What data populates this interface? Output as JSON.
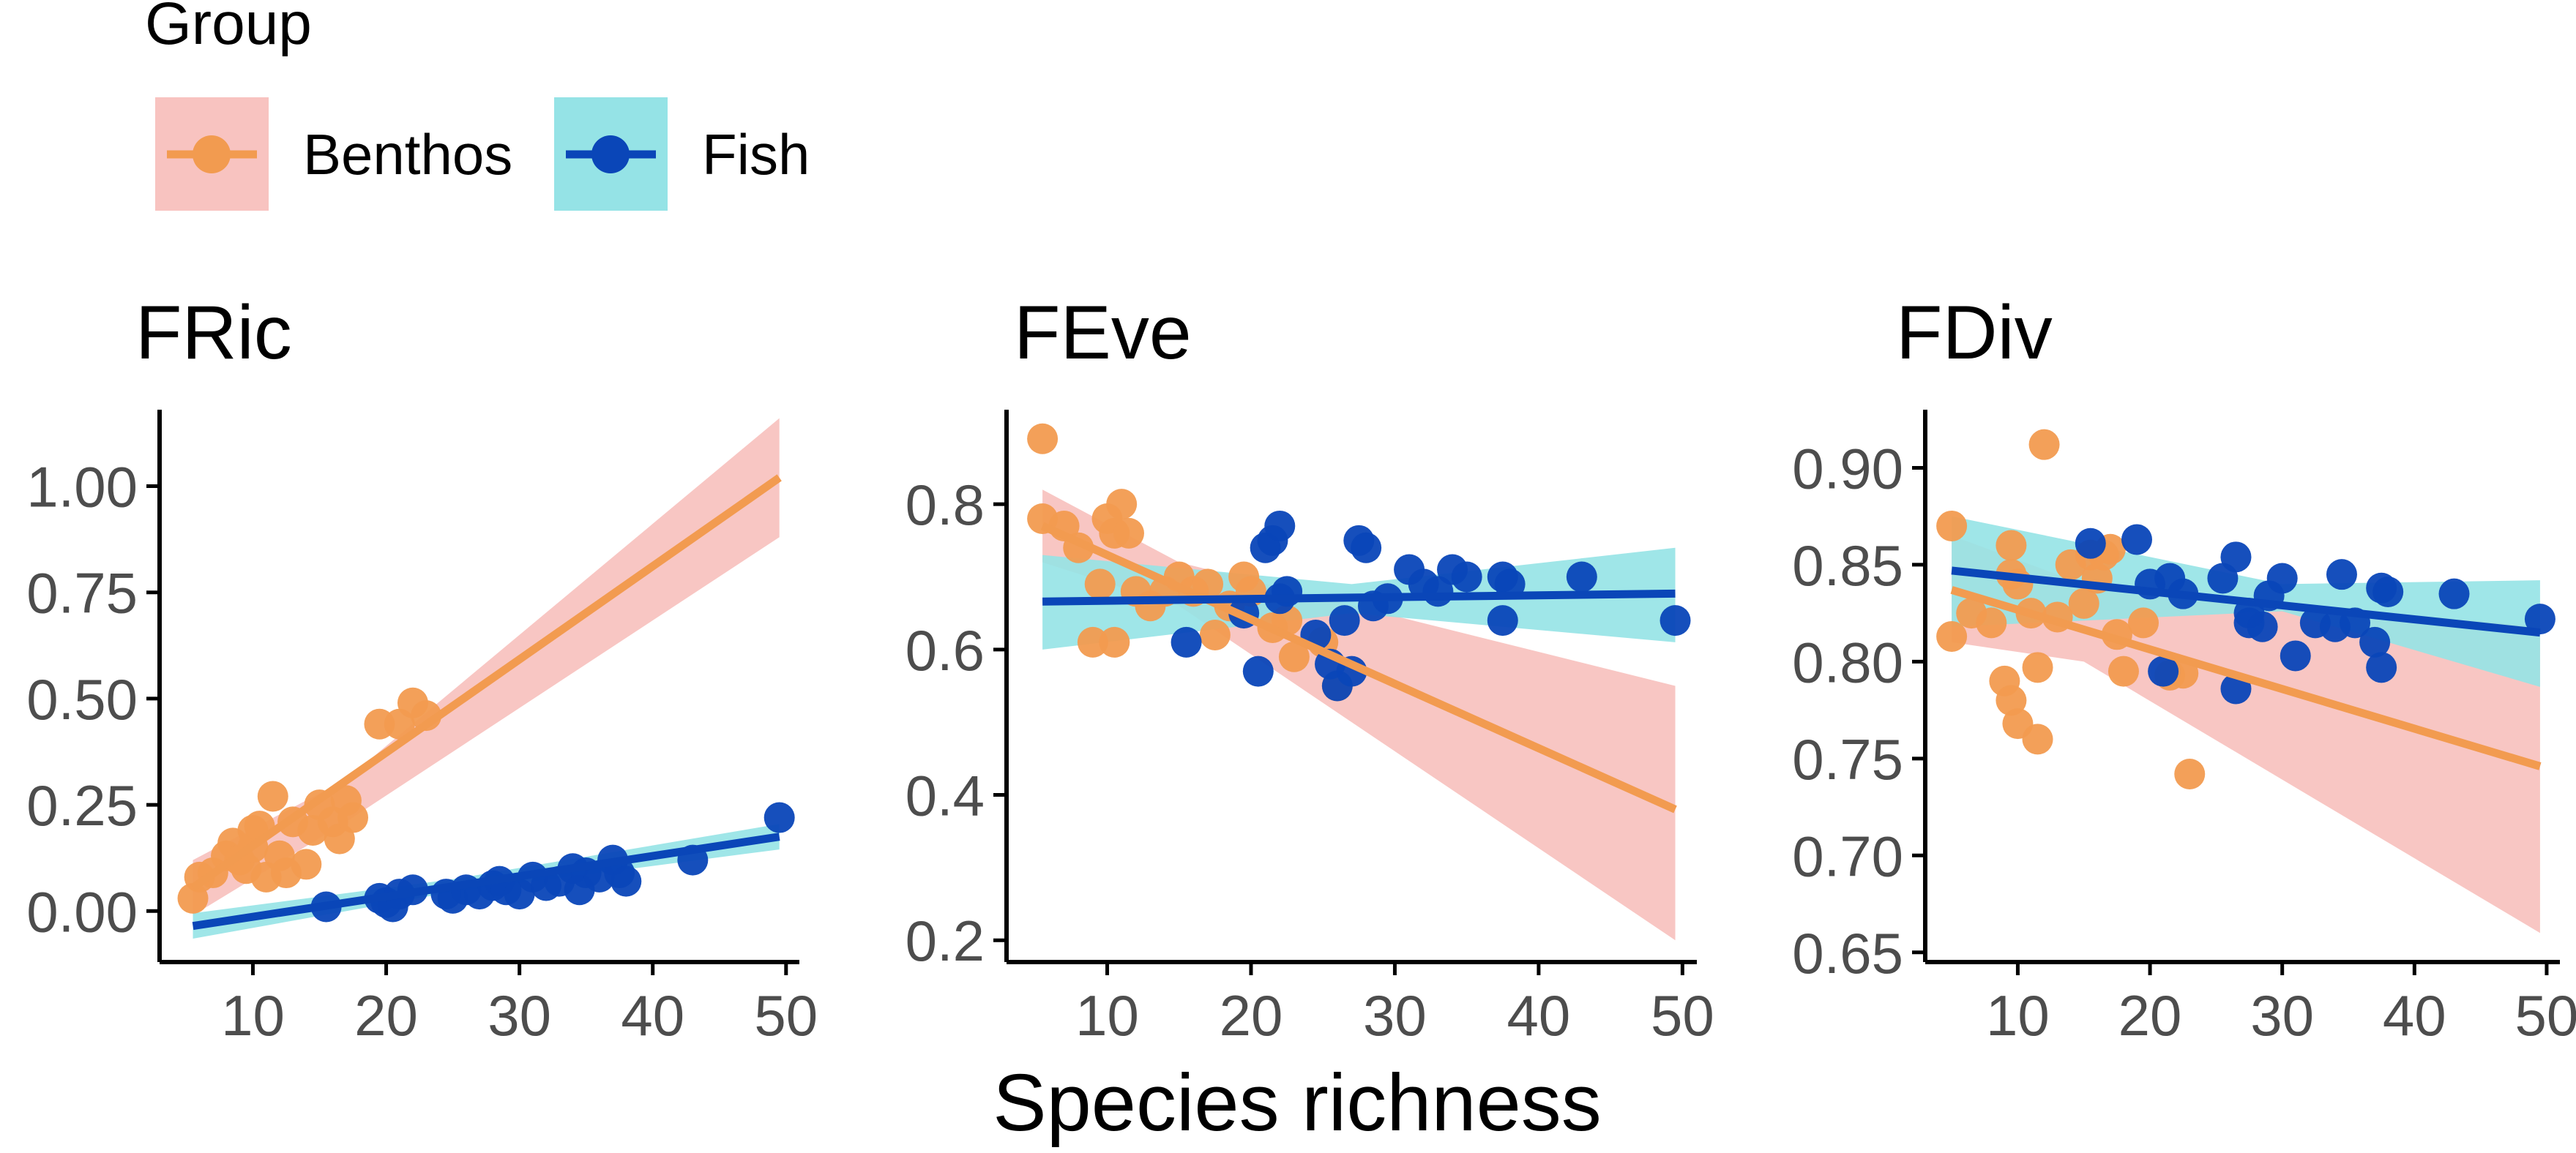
{
  "legend": {
    "title": "Group",
    "entries": [
      {
        "label": "Benthos",
        "line_color": "#F29B50",
        "band_color": "#F8C3C0"
      },
      {
        "label": "Fish",
        "line_color": "#0A46B8",
        "band_color": "#95E3E6"
      }
    ],
    "placement": "top-left"
  },
  "xlabel": "Species richness",
  "colors": {
    "benthos_point": "#F29B50",
    "benthos_line": "#F29B50",
    "benthos_band": "#F8C3C0",
    "fish_point": "#0A46B8",
    "fish_line": "#0A46B8",
    "fish_band": "#95E3E6",
    "axis": "#000000",
    "tick_text": "#4D4D4D"
  },
  "chart_data": [
    {
      "type": "scatter",
      "title": "FRic",
      "xlim": [
        3,
        51
      ],
      "ylim": [
        -0.12,
        1.18
      ],
      "xticks": [
        10,
        20,
        30,
        40,
        50
      ],
      "yticks": [
        0.0,
        0.25,
        0.5,
        0.75,
        1.0
      ],
      "ytick_labels": [
        "0.00",
        "0.25",
        "0.50",
        "0.75",
        "1.00"
      ],
      "grid": false,
      "series": [
        {
          "name": "Benthos",
          "points": [
            [
              5.5,
              0.03
            ],
            [
              6,
              0.08
            ],
            [
              7,
              0.09
            ],
            [
              8,
              0.13
            ],
            [
              8.5,
              0.16
            ],
            [
              9,
              0.12
            ],
            [
              9.5,
              0.1
            ],
            [
              10,
              0.19
            ],
            [
              10,
              0.15
            ],
            [
              10.5,
              0.2
            ],
            [
              11,
              0.08
            ],
            [
              11.5,
              0.27
            ],
            [
              12,
              0.13
            ],
            [
              12.5,
              0.09
            ],
            [
              13,
              0.21
            ],
            [
              14,
              0.11
            ],
            [
              14.5,
              0.19
            ],
            [
              15,
              0.25
            ],
            [
              16,
              0.21
            ],
            [
              16.5,
              0.17
            ],
            [
              17,
              0.26
            ],
            [
              17.5,
              0.22
            ],
            [
              19.5,
              0.44
            ],
            [
              21,
              0.44
            ],
            [
              22,
              0.49
            ],
            [
              23,
              0.46
            ]
          ],
          "fit": {
            "x": [
              5.5,
              49.5
            ],
            "y": [
              0.055,
              1.02
            ]
          },
          "band": {
            "x": [
              5.5,
              17,
              49.5
            ],
            "upper": [
              0.12,
              0.31,
              1.16
            ],
            "lower": [
              -0.01,
              0.21,
              0.88
            ]
          }
        },
        {
          "name": "Fish",
          "points": [
            [
              15.5,
              0.01
            ],
            [
              19.5,
              0.03
            ],
            [
              20,
              0.02
            ],
            [
              20.5,
              0.01
            ],
            [
              21,
              0.04
            ],
            [
              22,
              0.05
            ],
            [
              24.5,
              0.04
            ],
            [
              25,
              0.03
            ],
            [
              26,
              0.05
            ],
            [
              27,
              0.04
            ],
            [
              28,
              0.06
            ],
            [
              28.5,
              0.07
            ],
            [
              29,
              0.05
            ],
            [
              30,
              0.04
            ],
            [
              31,
              0.08
            ],
            [
              32,
              0.06
            ],
            [
              33,
              0.07
            ],
            [
              34,
              0.1
            ],
            [
              34.5,
              0.05
            ],
            [
              35,
              0.09
            ],
            [
              36,
              0.08
            ],
            [
              37,
              0.12
            ],
            [
              37.5,
              0.09
            ],
            [
              38,
              0.07
            ],
            [
              43,
              0.12
            ],
            [
              49.5,
              0.22
            ]
          ],
          "fit": {
            "x": [
              5.5,
              49.5
            ],
            "y": [
              -0.035,
              0.175
            ]
          },
          "band": {
            "x": [
              5.5,
              25,
              49.5
            ],
            "upper": [
              -0.005,
              0.075,
              0.205
            ],
            "lower": [
              -0.065,
              0.045,
              0.145
            ]
          }
        }
      ]
    },
    {
      "type": "scatter",
      "title": "FEve",
      "xlim": [
        3,
        51
      ],
      "ylim": [
        0.17,
        0.93
      ],
      "xticks": [
        10,
        20,
        30,
        40,
        50
      ],
      "yticks": [
        0.2,
        0.4,
        0.6,
        0.8
      ],
      "ytick_labels": [
        "0.2",
        "0.4",
        "0.6",
        "0.8"
      ],
      "grid": false,
      "series": [
        {
          "name": "Benthos",
          "points": [
            [
              5.5,
              0.89
            ],
            [
              5.5,
              0.78
            ],
            [
              7,
              0.77
            ],
            [
              8,
              0.74
            ],
            [
              9,
              0.61
            ],
            [
              9.5,
              0.69
            ],
            [
              10,
              0.78
            ],
            [
              10.5,
              0.61
            ],
            [
              10.5,
              0.76
            ],
            [
              11,
              0.8
            ],
            [
              11.5,
              0.76
            ],
            [
              12,
              0.68
            ],
            [
              13,
              0.66
            ],
            [
              14,
              0.68
            ],
            [
              15,
              0.7
            ],
            [
              16,
              0.68
            ],
            [
              17,
              0.69
            ],
            [
              17.5,
              0.62
            ],
            [
              18.5,
              0.66
            ],
            [
              19.5,
              0.7
            ],
            [
              20,
              0.68
            ],
            [
              21.5,
              0.63
            ],
            [
              22.5,
              0.64
            ],
            [
              23,
              0.59
            ],
            [
              25,
              0.61
            ],
            [
              26,
              0.55
            ]
          ],
          "fit": {
            "x": [
              5.5,
              49.5
            ],
            "y": [
              0.77,
              0.38
            ]
          },
          "band": {
            "x": [
              5.5,
              15,
              49.5
            ],
            "upper": [
              0.82,
              0.72,
              0.55
            ],
            "lower": [
              0.72,
              0.66,
              0.2
            ]
          }
        },
        {
          "name": "Fish",
          "points": [
            [
              15.5,
              0.61
            ],
            [
              19.5,
              0.65
            ],
            [
              20.5,
              0.57
            ],
            [
              21,
              0.74
            ],
            [
              21.5,
              0.75
            ],
            [
              22,
              0.77
            ],
            [
              22,
              0.67
            ],
            [
              22.5,
              0.68
            ],
            [
              24.5,
              0.62
            ],
            [
              25.5,
              0.58
            ],
            [
              26,
              0.55
            ],
            [
              26.5,
              0.64
            ],
            [
              27,
              0.57
            ],
            [
              27.5,
              0.75
            ],
            [
              28,
              0.74
            ],
            [
              28.5,
              0.66
            ],
            [
              29.5,
              0.67
            ],
            [
              31,
              0.71
            ],
            [
              32,
              0.69
            ],
            [
              33,
              0.68
            ],
            [
              34,
              0.71
            ],
            [
              35,
              0.7
            ],
            [
              37.5,
              0.7
            ],
            [
              37.5,
              0.64
            ],
            [
              38,
              0.69
            ],
            [
              43,
              0.7
            ],
            [
              49.5,
              0.64
            ]
          ],
          "fit": {
            "x": [
              5.5,
              49.5
            ],
            "y": [
              0.666,
              0.677
            ]
          },
          "band": {
            "x": [
              5.5,
              27,
              49.5
            ],
            "upper": [
              0.73,
              0.69,
              0.74
            ],
            "lower": [
              0.6,
              0.65,
              0.61
            ]
          }
        }
      ]
    },
    {
      "type": "scatter",
      "title": "FDiv",
      "xlim": [
        3,
        51
      ],
      "ylim": [
        0.645,
        0.93
      ],
      "xticks": [
        10,
        20,
        30,
        40,
        50
      ],
      "yticks": [
        0.65,
        0.7,
        0.75,
        0.8,
        0.85,
        0.9
      ],
      "ytick_labels": [
        "0.65",
        "0.70",
        "0.75",
        "0.80",
        "0.85",
        "0.90"
      ],
      "grid": false,
      "series": [
        {
          "name": "Benthos",
          "points": [
            [
              5,
              0.87
            ],
            [
              5,
              0.813
            ],
            [
              6.5,
              0.825
            ],
            [
              8,
              0.82
            ],
            [
              9,
              0.79
            ],
            [
              9.5,
              0.86
            ],
            [
              9.5,
              0.845
            ],
            [
              9.5,
              0.78
            ],
            [
              10,
              0.768
            ],
            [
              10,
              0.84
            ],
            [
              11,
              0.825
            ],
            [
              11.5,
              0.797
            ],
            [
              11.5,
              0.76
            ],
            [
              12,
              0.912
            ],
            [
              13,
              0.823
            ],
            [
              14,
              0.85
            ],
            [
              15,
              0.83
            ],
            [
              15.5,
              0.855
            ],
            [
              16,
              0.843
            ],
            [
              16.5,
              0.855
            ],
            [
              17,
              0.858
            ],
            [
              17.5,
              0.814
            ],
            [
              18,
              0.795
            ],
            [
              19.5,
              0.82
            ],
            [
              21.5,
              0.793
            ],
            [
              22.5,
              0.794
            ],
            [
              23,
              0.742
            ]
          ],
          "fit": {
            "x": [
              5,
              49.5
            ],
            "y": [
              0.837,
              0.746
            ]
          },
          "band": {
            "x": [
              5,
              15,
              49.5
            ],
            "upper": [
              0.865,
              0.84,
              0.818
            ],
            "lower": [
              0.81,
              0.8,
              0.66
            ]
          }
        },
        {
          "name": "Fish",
          "points": [
            [
              15.5,
              0.861
            ],
            [
              19,
              0.863
            ],
            [
              20,
              0.84
            ],
            [
              21,
              0.795
            ],
            [
              21.5,
              0.843
            ],
            [
              22.5,
              0.835
            ],
            [
              25.5,
              0.843
            ],
            [
              26.5,
              0.854
            ],
            [
              26.5,
              0.786
            ],
            [
              27.5,
              0.825
            ],
            [
              27.5,
              0.82
            ],
            [
              28.5,
              0.818
            ],
            [
              29,
              0.834
            ],
            [
              30,
              0.843
            ],
            [
              31,
              0.803
            ],
            [
              32.5,
              0.82
            ],
            [
              34,
              0.818
            ],
            [
              34.5,
              0.845
            ],
            [
              35.5,
              0.82
            ],
            [
              37,
              0.81
            ],
            [
              37.5,
              0.838
            ],
            [
              37.5,
              0.797
            ],
            [
              38,
              0.836
            ],
            [
              43,
              0.835
            ],
            [
              49.5,
              0.822
            ]
          ],
          "fit": {
            "x": [
              5,
              49.5
            ],
            "y": [
              0.847,
              0.815
            ]
          },
          "band": {
            "x": [
              5,
              30,
              49.5
            ],
            "upper": [
              0.875,
              0.84,
              0.842
            ],
            "lower": [
              0.818,
              0.826,
              0.787
            ]
          }
        }
      ]
    }
  ]
}
